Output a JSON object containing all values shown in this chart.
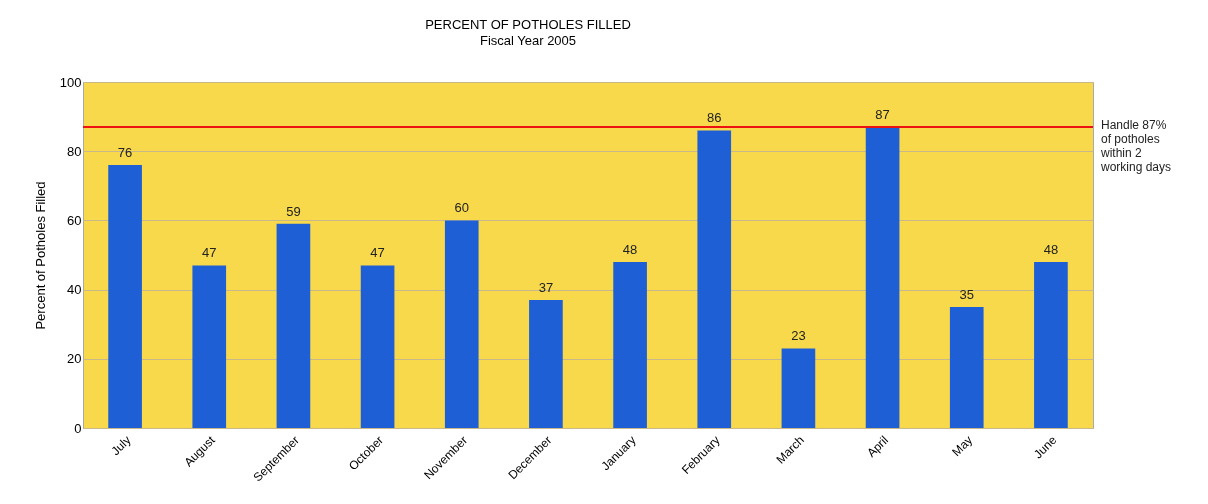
{
  "chart_data": {
    "type": "bar",
    "title": "PERCENT OF POTHOLES FILLED",
    "subtitle": "Fiscal Year 2005",
    "ylabel": "Percent of Potholes Filled",
    "categories": [
      "July",
      "August",
      "September",
      "October",
      "November",
      "December",
      "January",
      "February",
      "March",
      "April",
      "May",
      "June"
    ],
    "values": [
      76,
      47,
      59,
      47,
      60,
      37,
      48,
      86,
      23,
      87,
      35,
      48
    ],
    "color": "#1f5fd6",
    "ylim": [
      0,
      100
    ],
    "yticks": [
      0,
      20,
      40,
      60,
      80,
      100
    ],
    "grid": "y",
    "data_labels": true,
    "ref_lines": [
      {
        "axis": "y",
        "value": 87,
        "label": "Handle 87%\nof potholes\nwithin 2\nworking days",
        "color": "#ee1111"
      }
    ]
  }
}
